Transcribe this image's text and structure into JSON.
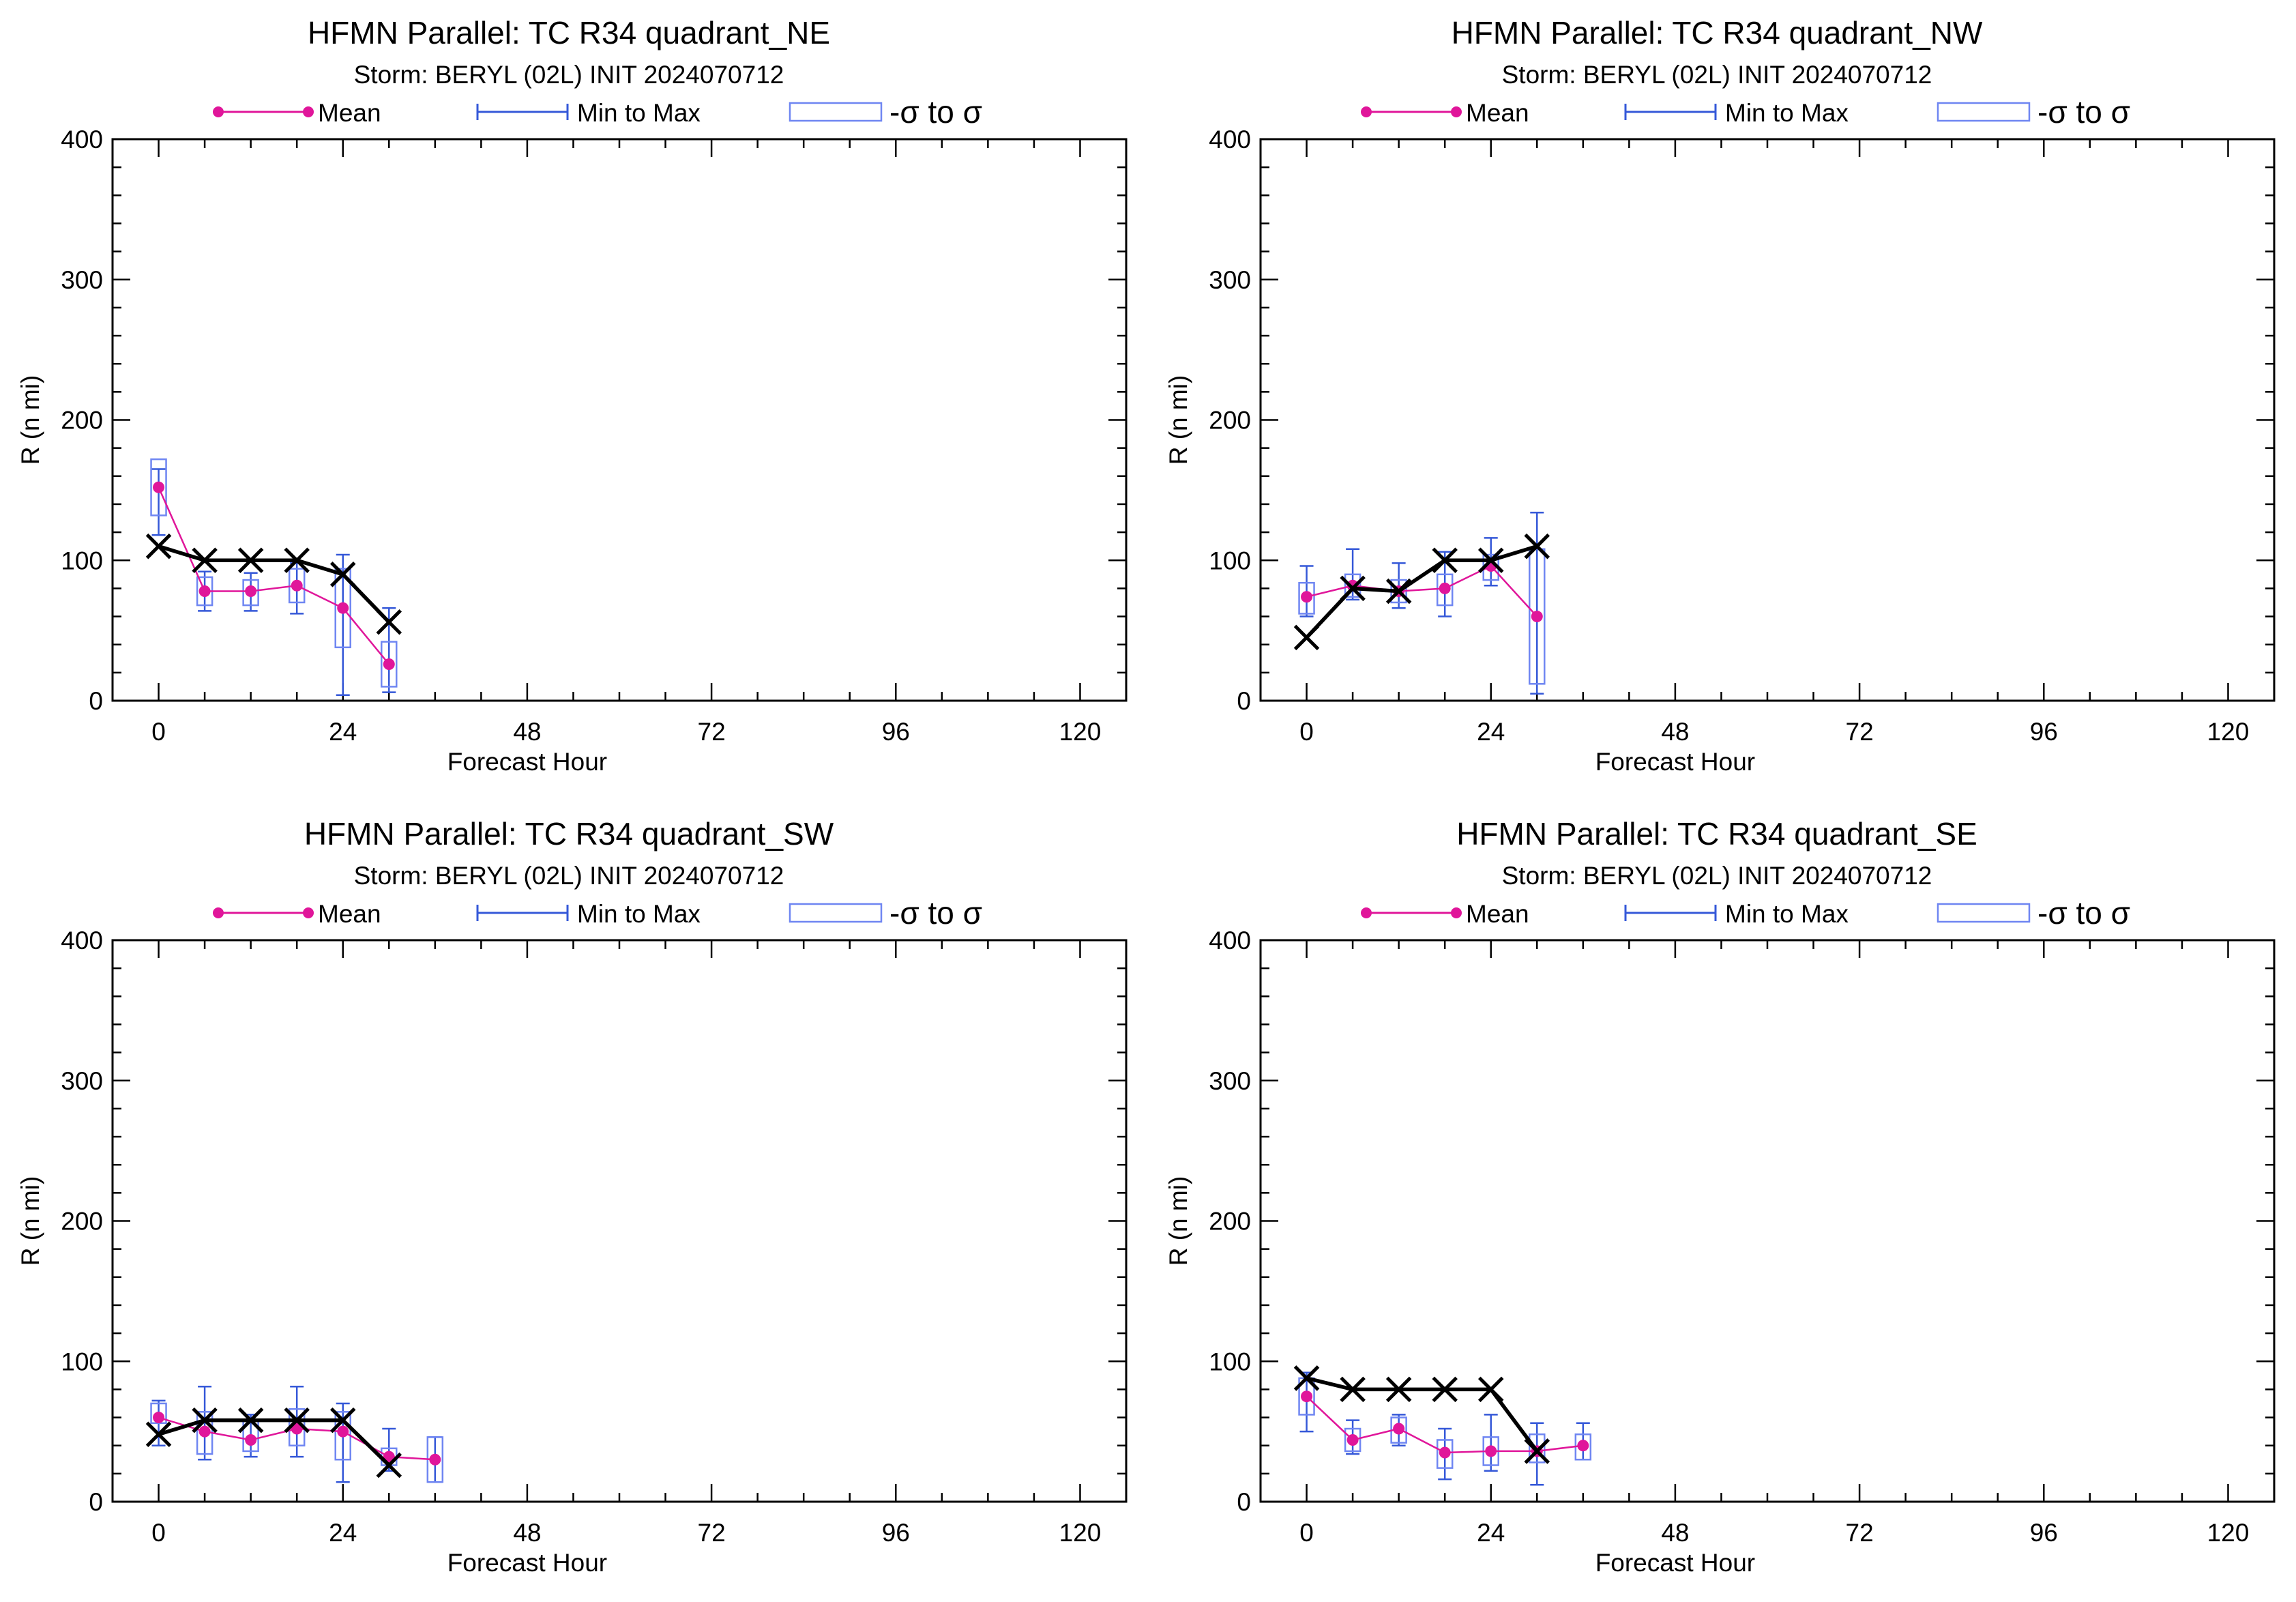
{
  "legend": {
    "mean_label": "Mean",
    "minmax_label": "Min to Max",
    "sigma_label": "-σ to σ"
  },
  "colors": {
    "mean": "#e0169a",
    "minmax": "#3558d8",
    "sigma_box": "#6f86f2",
    "observed": "#000000",
    "axis": "#000000"
  },
  "chart_data": [
    {
      "type": "box",
      "title": "HFMN Parallel: TC  R34 quadrant_NE",
      "subtitle": "Storm: BERYL (02L) INIT 2024070712",
      "xlabel": "Forecast Hour",
      "ylabel": "R (n mi)",
      "xlim": [
        -6,
        126
      ],
      "ylim": [
        0,
        400
      ],
      "xticks": [
        0,
        24,
        48,
        72,
        96,
        120
      ],
      "yticks": [
        0,
        100,
        200,
        300,
        400
      ],
      "legend_position": "top",
      "mean": {
        "x": [
          0,
          6,
          12,
          18,
          24,
          30
        ],
        "y": [
          152,
          78,
          78,
          82,
          66,
          26
        ]
      },
      "min_to_max": {
        "x": [
          0,
          6,
          12,
          18,
          24,
          30
        ],
        "low": [
          118,
          64,
          64,
          62,
          4,
          6
        ],
        "high": [
          165,
          92,
          91,
          98,
          104,
          66
        ]
      },
      "sigma": {
        "x": [
          0,
          6,
          12,
          18,
          24,
          30
        ],
        "low": [
          132,
          68,
          68,
          70,
          38,
          10
        ],
        "high": [
          172,
          88,
          86,
          94,
          94,
          42
        ]
      },
      "observed": {
        "x": [
          0,
          6,
          12,
          18,
          24,
          30
        ],
        "y": [
          110,
          100,
          100,
          100,
          90,
          56
        ]
      }
    },
    {
      "type": "box",
      "title": "HFMN Parallel: TC  R34 quadrant_NW",
      "subtitle": "Storm: BERYL (02L) INIT 2024070712",
      "xlabel": "Forecast Hour",
      "ylabel": "R (n mi)",
      "xlim": [
        -6,
        126
      ],
      "ylim": [
        0,
        400
      ],
      "xticks": [
        0,
        24,
        48,
        72,
        96,
        120
      ],
      "yticks": [
        0,
        100,
        200,
        300,
        400
      ],
      "legend_position": "top",
      "mean": {
        "x": [
          0,
          6,
          12,
          18,
          24,
          30
        ],
        "y": [
          74,
          82,
          78,
          80,
          96,
          60
        ]
      },
      "min_to_max": {
        "x": [
          0,
          6,
          12,
          18,
          24,
          30
        ],
        "low": [
          60,
          72,
          66,
          60,
          82,
          5
        ],
        "high": [
          96,
          108,
          98,
          106,
          116,
          134
        ]
      },
      "sigma": {
        "x": [
          0,
          6,
          12,
          18,
          24,
          30
        ],
        "low": [
          62,
          74,
          70,
          68,
          86,
          12
        ],
        "high": [
          84,
          90,
          86,
          90,
          104,
          108
        ]
      },
      "observed": {
        "x": [
          0,
          6,
          12,
          18,
          24,
          30
        ],
        "y": [
          45,
          80,
          78,
          100,
          100,
          110
        ]
      }
    },
    {
      "type": "box",
      "title": "HFMN Parallel: TC  R34 quadrant_SW",
      "subtitle": "Storm: BERYL (02L) INIT 2024070712",
      "xlabel": "Forecast Hour",
      "ylabel": "R (n mi)",
      "xlim": [
        -6,
        126
      ],
      "ylim": [
        0,
        400
      ],
      "xticks": [
        0,
        24,
        48,
        72,
        96,
        120
      ],
      "yticks": [
        0,
        100,
        200,
        300,
        400
      ],
      "legend_position": "top",
      "mean": {
        "x": [
          0,
          6,
          12,
          18,
          24,
          30,
          36
        ],
        "y": [
          60,
          50,
          44,
          52,
          50,
          32,
          30
        ]
      },
      "min_to_max": {
        "x": [
          0,
          6,
          12,
          18,
          24,
          30,
          36
        ],
        "low": [
          40,
          30,
          32,
          32,
          14,
          22,
          14
        ],
        "high": [
          72,
          82,
          62,
          82,
          70,
          52,
          46
        ]
      },
      "sigma": {
        "x": [
          0,
          6,
          12,
          18,
          24,
          30,
          36
        ],
        "low": [
          56,
          34,
          36,
          40,
          30,
          26,
          14
        ],
        "high": [
          70,
          64,
          58,
          66,
          64,
          38,
          46
        ]
      },
      "observed": {
        "x": [
          0,
          6,
          12,
          18,
          24,
          30
        ],
        "y": [
          48,
          58,
          58,
          58,
          58,
          26
        ]
      }
    },
    {
      "type": "box",
      "title": "HFMN Parallel: TC  R34 quadrant_SE",
      "subtitle": "Storm: BERYL (02L) INIT 2024070712",
      "xlabel": "Forecast Hour",
      "ylabel": "R (n mi)",
      "xlim": [
        -6,
        126
      ],
      "ylim": [
        0,
        400
      ],
      "xticks": [
        0,
        24,
        48,
        72,
        96,
        120
      ],
      "yticks": [
        0,
        100,
        200,
        300,
        400
      ],
      "legend_position": "top",
      "mean": {
        "x": [
          0,
          6,
          12,
          18,
          24,
          30,
          36
        ],
        "y": [
          75,
          44,
          52,
          35,
          36,
          36,
          40
        ]
      },
      "min_to_max": {
        "x": [
          0,
          6,
          12,
          18,
          24,
          30,
          36
        ],
        "low": [
          50,
          34,
          40,
          16,
          22,
          12,
          30
        ],
        "high": [
          92,
          58,
          62,
          52,
          62,
          56,
          56
        ]
      },
      "sigma": {
        "x": [
          0,
          6,
          12,
          18,
          24,
          30,
          36
        ],
        "low": [
          62,
          36,
          42,
          24,
          26,
          28,
          30
        ],
        "high": [
          88,
          52,
          60,
          44,
          46,
          48,
          48
        ]
      },
      "observed": {
        "x": [
          0,
          6,
          12,
          18,
          24,
          30
        ],
        "y": [
          88,
          80,
          80,
          80,
          80,
          36
        ]
      }
    }
  ]
}
